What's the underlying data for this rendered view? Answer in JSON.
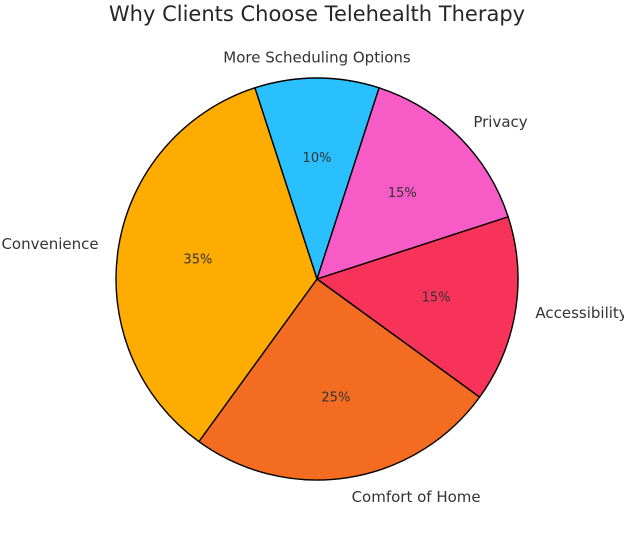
{
  "chart_data": {
    "type": "pie",
    "title": "Why Clients Choose Telehealth Therapy",
    "start_angle_deg": 108,
    "direction": "clockwise",
    "slices": [
      {
        "label": "More Scheduling Options",
        "value": 10,
        "pct_label": "10%",
        "color": "#2ABFFF"
      },
      {
        "label": "Privacy",
        "value": 15,
        "pct_label": "15%",
        "color": "#F75CC6"
      },
      {
        "label": "Accessibility",
        "value": 15,
        "pct_label": "15%",
        "color": "#F7335A"
      },
      {
        "label": "Comfort of Home",
        "value": 25,
        "pct_label": "25%",
        "color": "#F46B22"
      },
      {
        "label": "Convenience",
        "value": 35,
        "pct_label": "35%",
        "color": "#FFAC00"
      }
    ]
  }
}
